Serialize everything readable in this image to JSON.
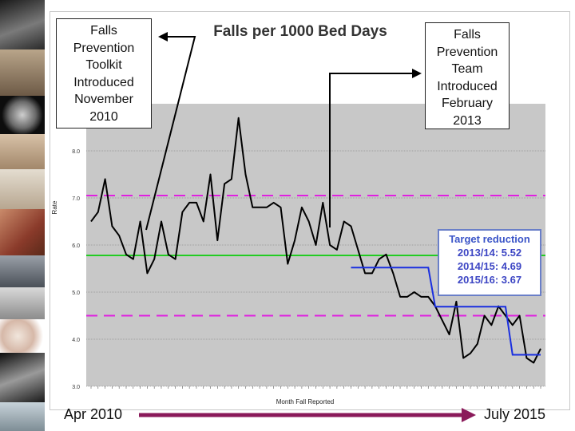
{
  "callouts": {
    "left": [
      "Falls",
      "Prevention",
      "Toolkit",
      "Introduced",
      "November",
      "2010"
    ],
    "right": [
      "Falls",
      "Prevention",
      "Team",
      "Introduced",
      "February",
      "2013"
    ]
  },
  "timeline": {
    "start_label": "Apr 2010",
    "end_label": "July 2015",
    "arrow_color": "#8a1a5a"
  },
  "target_box": {
    "title": "Target reduction",
    "lines": [
      "2013/14: 5.52",
      "2014/15: 4.69",
      "2015/16: 3.67"
    ]
  },
  "chart_data": {
    "type": "line",
    "title": "Falls per 1000 Bed Days",
    "xlabel": "Month Fall Reported",
    "ylabel": "Rate",
    "ylim": [
      3.0,
      9.0
    ],
    "yticks": [
      3.0,
      4.0,
      5.0,
      6.0,
      7.0,
      8.0
    ],
    "grid": true,
    "plot_bg": "#c8c8c8",
    "series": [
      {
        "name": "",
        "color": "#000000",
        "values": [
          6.5,
          6.7,
          7.4,
          6.4,
          6.2,
          5.8,
          5.7,
          6.5,
          5.4,
          5.7,
          6.5,
          5.8,
          5.7,
          6.7,
          6.9,
          6.9,
          6.5,
          7.5,
          6.1,
          7.3,
          7.4,
          8.7,
          7.5,
          6.8,
          6.8,
          6.8,
          6.9,
          6.8,
          5.6,
          6.1,
          6.8,
          6.5,
          6.0,
          6.9,
          6.0,
          5.9,
          6.5,
          6.4,
          5.9,
          5.4,
          5.4,
          5.7,
          5.8,
          5.4,
          4.9,
          4.9,
          5.0,
          4.9,
          4.9,
          4.7,
          4.4,
          4.1,
          4.8,
          3.6,
          3.7,
          3.9,
          4.5,
          4.3,
          4.7,
          4.5,
          4.3,
          4.5,
          3.6,
          3.5,
          3.8
        ]
      },
      {
        "name": "Target",
        "color": "#1a2fe0",
        "step": [
          [
            37,
            5.52
          ],
          [
            48,
            5.52
          ],
          [
            49,
            4.69
          ],
          [
            59,
            4.69
          ],
          [
            60,
            3.67
          ],
          [
            64,
            3.67
          ]
        ]
      }
    ],
    "reference_lines": [
      {
        "name": "mean",
        "value": 5.78,
        "color": "#22cc22",
        "style": "solid"
      },
      {
        "name": "upper",
        "value": 7.05,
        "color": "#e020e0",
        "style": "dashed"
      },
      {
        "name": "lower",
        "value": 4.5,
        "color": "#e020e0",
        "style": "dashed"
      }
    ],
    "point_count": 65
  }
}
